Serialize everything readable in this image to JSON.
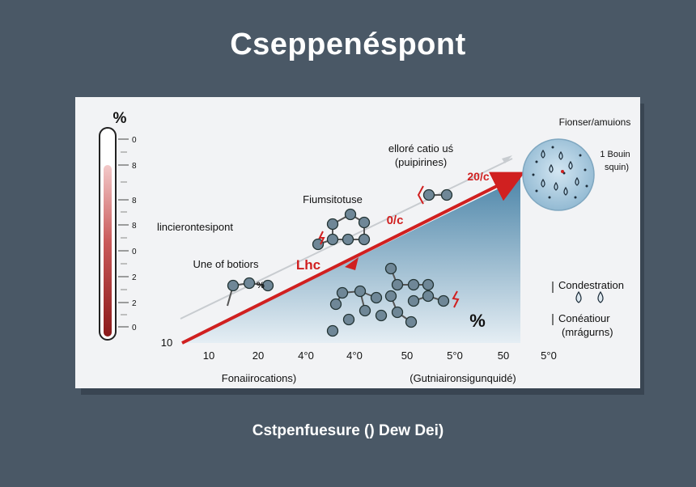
{
  "title": "Cseppenéspont",
  "subtitle": "Cstpenfuesure () Dew Dei)",
  "colors": {
    "background": "#4a5866",
    "panel": "#f2f3f5",
    "arrow": "#d02020",
    "wedge": "#5b8fb0",
    "molecule": "#6f8797",
    "droplet_circle": "#a9c8dc",
    "thermometer_fill": "#8b1a1a"
  },
  "thermometer": {
    "unit": "%",
    "ticks": [
      "0",
      "8",
      "8",
      "8",
      "0",
      "2",
      "2",
      "0"
    ]
  },
  "labels": {
    "left": "lincierontesipont",
    "molecules_small": "Une of botiors",
    "molecules_cluster": "Fiumsitotuse",
    "ellore_line1": "elloré catio uś",
    "ellore_line2": "(puipirines)",
    "arrow_main": "Lhc",
    "arrow_pct": "0/c",
    "arrow_top": "20/c",
    "small_mark": "%",
    "pct_big": "%",
    "droplets_title": "Fionser/amuions",
    "droplets_side_line1": "1 Bouin",
    "droplets_side_line2": "squin)",
    "legend_top": "Condestration",
    "legend_bottom_line1": "Conéatiour",
    "legend_bottom_line2": "(mrágurns)"
  },
  "axis": {
    "y_label": "10",
    "ticks": [
      "10",
      "20",
      "4°0",
      "4°0",
      "50",
      "5°0",
      "50",
      "5°0"
    ],
    "label_left": "Fonaiirocations)",
    "label_right": "(Gutniaironsigunquidé)"
  }
}
